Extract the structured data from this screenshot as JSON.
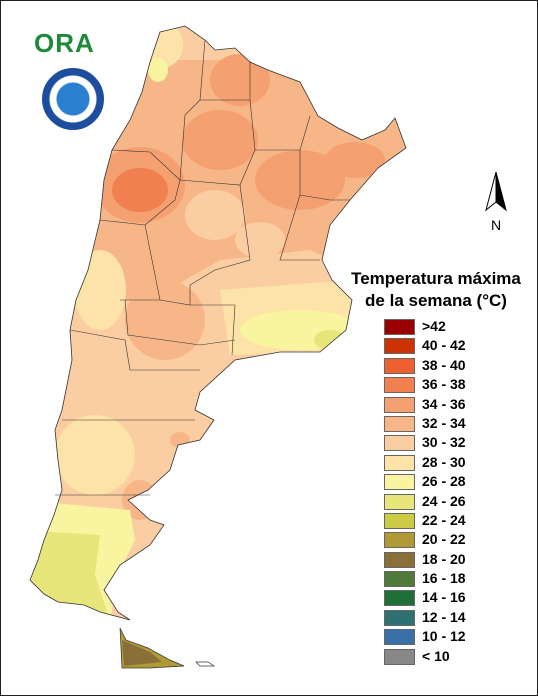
{
  "legend": {
    "title_line1": "Temperatura máxima",
    "title_line2": "de la semana (°C)",
    "items": [
      {
        "label": ">42",
        "color": "#990000"
      },
      {
        "label": "40 - 42",
        "color": "#cc3300"
      },
      {
        "label": "38 - 40",
        "color": "#ee6030"
      },
      {
        "label": "36 - 38",
        "color": "#f08050"
      },
      {
        "label": "34 - 36",
        "color": "#f4a070"
      },
      {
        "label": "32 - 34",
        "color": "#f7b688"
      },
      {
        "label": "30 - 32",
        "color": "#fbcda2"
      },
      {
        "label": "28 - 30",
        "color": "#fde3a8"
      },
      {
        "label": "26 - 28",
        "color": "#f8f4a0"
      },
      {
        "label": "24 - 26",
        "color": "#e6e67a"
      },
      {
        "label": "22 - 24",
        "color": "#cccc44"
      },
      {
        "label": "20 - 22",
        "color": "#b09a38"
      },
      {
        "label": "18 - 20",
        "color": "#8a7038"
      },
      {
        "label": "16 - 18",
        "color": "#4f7a3a"
      },
      {
        "label": "14 - 16",
        "color": "#1e7038"
      },
      {
        "label": "12 - 14",
        "color": "#2f7070"
      },
      {
        "label": "10 - 12",
        "color": "#3a70a8"
      },
      {
        "label": "< 10",
        "color": "#888888"
      }
    ]
  },
  "north_arrow": {
    "label": "N"
  },
  "logos": {
    "ora": "ORA",
    "smn_icon": "smn-seal-icon"
  }
}
